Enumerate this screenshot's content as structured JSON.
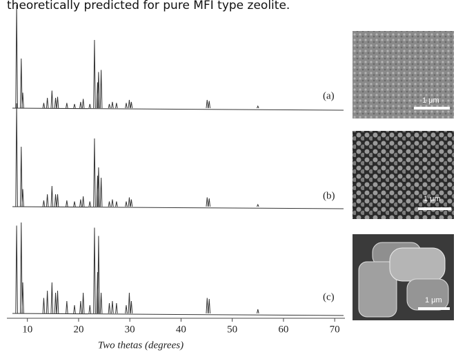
{
  "caption_fragment": "theoretically predicted for pure MFI type zeolite.",
  "chart_data": {
    "type": "line",
    "x": [
      7.9,
      8.8,
      9.1,
      13.2,
      13.9,
      14.8,
      15.5,
      15.9,
      17.7,
      19.2,
      20.4,
      20.9,
      22.2,
      23.1,
      23.7,
      23.9,
      24.4,
      26.0,
      26.6,
      27.4,
      29.3,
      29.9,
      30.3,
      45.1,
      45.5,
      55.0
    ],
    "series": [
      {
        "name": "(a)",
        "color": "#333333",
        "values": [
          100,
          48,
          15,
          5,
          10,
          17,
          10,
          11,
          5,
          4,
          6,
          9,
          4,
          66,
          25,
          35,
          37,
          4,
          6,
          5,
          5,
          8,
          6,
          8,
          7,
          2
        ]
      },
      {
        "name": "(b)",
        "color": "#333333",
        "values": [
          100,
          58,
          17,
          6,
          12,
          20,
          12,
          12,
          6,
          5,
          7,
          10,
          5,
          66,
          30,
          38,
          28,
          5,
          7,
          5,
          5,
          9,
          7,
          9,
          8,
          2
        ]
      },
      {
        "name": "(c)",
        "color": "#333333",
        "values": [
          85,
          88,
          30,
          15,
          22,
          30,
          20,
          22,
          12,
          8,
          12,
          20,
          8,
          83,
          40,
          75,
          20,
          10,
          12,
          10,
          8,
          20,
          12,
          15,
          14,
          4
        ]
      }
    ],
    "xlim": [
      6,
      72
    ],
    "xticks": [
      10,
      20,
      30,
      40,
      50,
      60,
      70
    ],
    "xlabel": "Two thetas (degrees)"
  },
  "images": [
    {
      "scale_label": "1 μm"
    },
    {
      "scale_label": "1 μm"
    },
    {
      "scale_label": "1 μm"
    }
  ]
}
